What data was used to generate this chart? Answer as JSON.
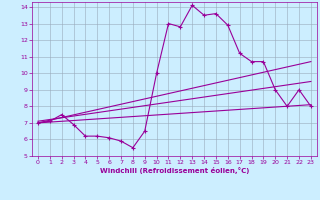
{
  "xlabel": "Windchill (Refroidissement éolien,°C)",
  "xlim": [
    -0.5,
    23.5
  ],
  "ylim": [
    5,
    14.3
  ],
  "xticks": [
    0,
    1,
    2,
    3,
    4,
    5,
    6,
    7,
    8,
    9,
    10,
    11,
    12,
    13,
    14,
    15,
    16,
    17,
    18,
    19,
    20,
    21,
    22,
    23
  ],
  "yticks": [
    5,
    6,
    7,
    8,
    9,
    10,
    11,
    12,
    13,
    14
  ],
  "bg_color": "#cceeff",
  "line_color": "#990099",
  "grid_color": "#99aabb",
  "line1_x": [
    0,
    1,
    2,
    3,
    4,
    5,
    6,
    7,
    8,
    9,
    10,
    11,
    12,
    13,
    14,
    15,
    16,
    17,
    18,
    19,
    20,
    21,
    22,
    23
  ],
  "line1_y": [
    7.0,
    7.1,
    7.5,
    6.9,
    6.2,
    6.2,
    6.1,
    5.9,
    5.5,
    6.5,
    10.0,
    13.0,
    12.8,
    14.1,
    13.5,
    13.6,
    12.9,
    11.2,
    10.7,
    10.7,
    9.0,
    8.0,
    9.0,
    8.0
  ],
  "line2_x": [
    0,
    23
  ],
  "line2_y": [
    7.0,
    8.1
  ],
  "line3_x": [
    0,
    23
  ],
  "line3_y": [
    7.0,
    10.7
  ],
  "line4_x": [
    0,
    23
  ],
  "line4_y": [
    7.1,
    9.5
  ]
}
